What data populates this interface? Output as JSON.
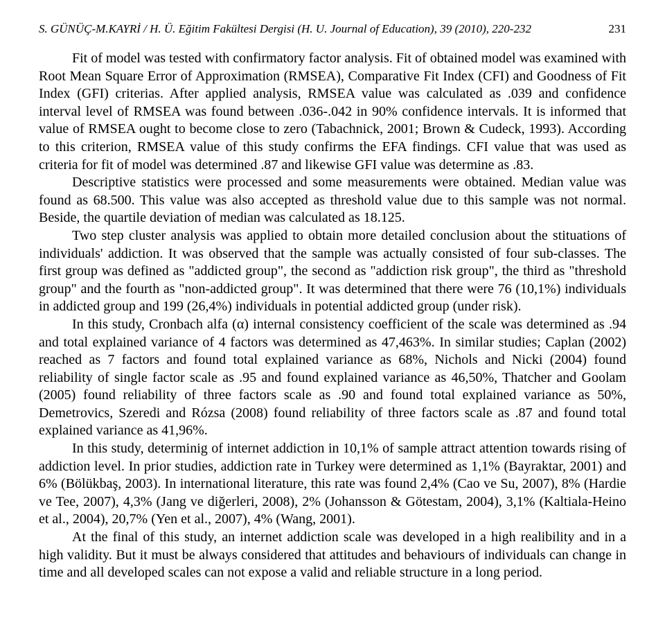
{
  "header": {
    "left": "S. GÜNÜÇ-M.KAYRİ / H. Ü. Eğitim Fakültesi Dergisi (H. U. Journal of Education), 39 (2010), 220-232",
    "pageNumber": "231"
  },
  "paragraphs": {
    "p1": "Fit of model was tested with confirmatory factor analysis. Fit of obtained model was examined with Root Mean Square Error of Approximation (RMSEA), Comparative Fit Index (CFI) and Goodness of Fit Index (GFI) criterias. After applied analysis, RMSEA value was calculated as .039 and confidence interval level of RMSEA was found between .036-.042 in 90% confidence intervals. It is informed that value of RMSEA ought to become close to zero (Tabachnick, 2001; Brown & Cudeck, 1993). According to this criterion, RMSEA value of this study confirms the EFA findings. CFI value that was used as criteria for fit of model was determined .87 and likewise GFI value was determine as .83.",
    "p2": "Descriptive statistics were processed and some measurements were obtained. Median value was found as 68.500. This value was also accepted as threshold value due to this sample was not normal. Beside, the quartile deviation of median was calculated as 18.125.",
    "p3": "Two step cluster analysis was applied to obtain more detailed conclusion about the stituations of individuals' addiction. It was observed that the sample was actually consisted of four sub-classes. The first group was defined as \"addicted group\", the second as \"addiction risk group\", the third as \"threshold group\" and the fourth as \"non-addicted group\". It was determined that there were 76 (10,1%) individuals in addicted group and 199 (26,4%) individuals in potential addicted group (under risk).",
    "p4": "In this study, Cronbach alfa (α) internal consistency coefficient of the scale was determined as .94 and total explained variance of 4 factors was determined as 47,463%. In similar studies; Caplan (2002) reached as 7 factors and found total explained variance as 68%, Nichols and Nicki (2004) found reliability of single factor scale as .95 and found explained variance as 46,50%, Thatcher and Goolam (2005) found reliability of three factors scale as .90 and found total explained variance as 50%, Demetrovics, Szeredi and Rózsa (2008) found reliability of three factors scale as .87 and found total explained variance as 41,96%.",
    "p5": "In this study, determinig of internet addiction in 10,1% of sample attract attention towards rising of addiction level. In prior studies, addiction rate in Turkey were determined as 1,1% (Bayraktar, 2001) and 6% (Bölükbaş, 2003). In international literature, this rate was found 2,4% (Cao ve Su, 2007), 8% (Hardie ve Tee, 2007), 4,3% (Jang ve diğerleri, 2008), 2% (Johansson & Götestam, 2004), 3,1% (Kaltiala-Heino et al., 2004), 20,7% (Yen et al., 2007), 4% (Wang, 2001).",
    "p6": "At the final of this study, an internet addiction scale was developed in a high realibility and in a high validity. But it must be always considered that attitudes and behaviours of individuals can change in time and all developed scales can not expose a valid and reliable structure in a long period."
  }
}
